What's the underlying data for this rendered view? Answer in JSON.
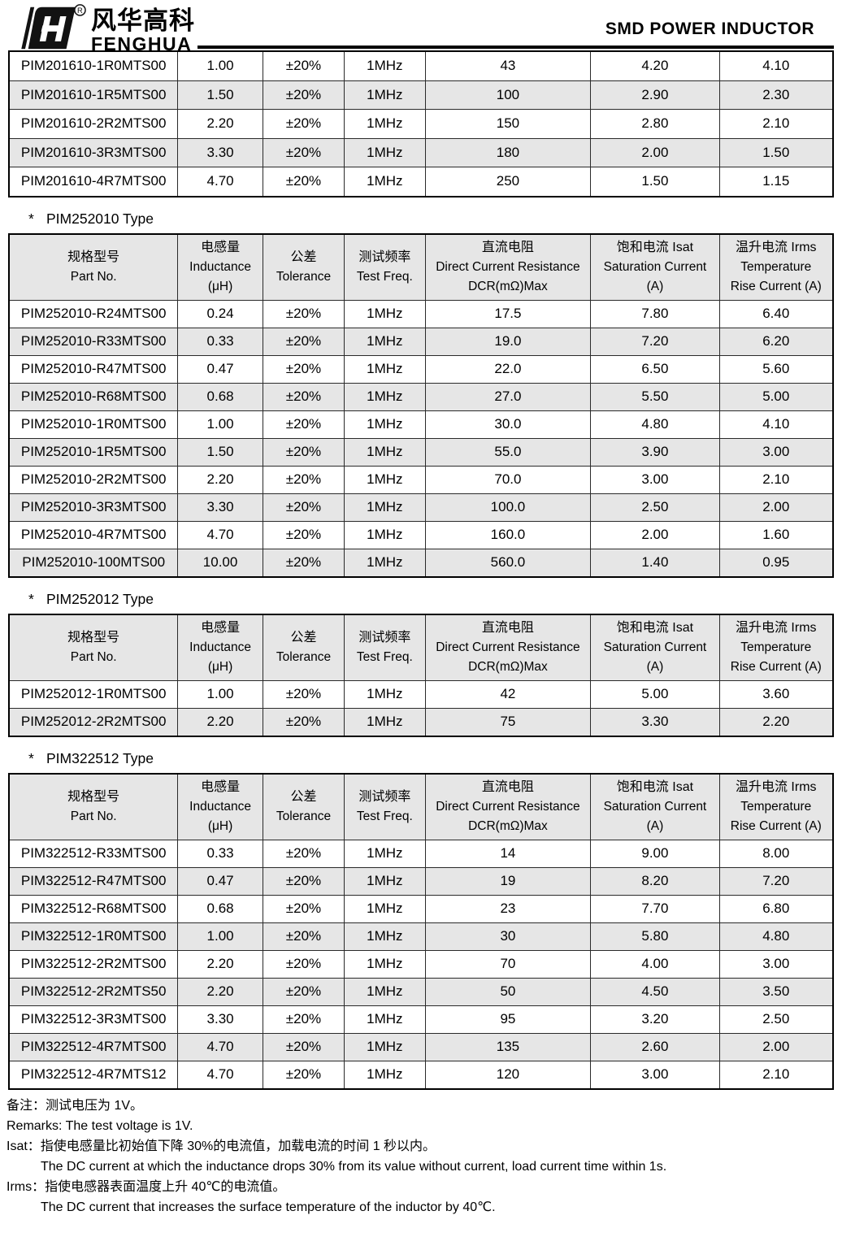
{
  "header": {
    "brand_cn": "风华高科",
    "brand_en": "FENGHUA",
    "registered": "R",
    "title": "SMD POWER INDUCTOR"
  },
  "column_headers": [
    {
      "key": "part_no",
      "lines": [
        "规格型号",
        "Part No."
      ]
    },
    {
      "key": "inductance",
      "lines": [
        "电感量",
        "Inductance",
        "(μH)"
      ]
    },
    {
      "key": "tolerance",
      "lines": [
        "公差",
        "Tolerance"
      ]
    },
    {
      "key": "test_freq",
      "lines": [
        "测试频率",
        "Test Freq."
      ]
    },
    {
      "key": "dcr",
      "lines": [
        "直流电阻",
        "Direct Current Resistance",
        "DCR(mΩ)Max"
      ]
    },
    {
      "key": "isat",
      "lines": [
        "饱和电流  Isat",
        "Saturation Current",
        "(A)"
      ]
    },
    {
      "key": "irms",
      "lines": [
        "温升电流  Irms",
        "Temperature",
        "Rise Current (A)"
      ]
    }
  ],
  "tables": [
    {
      "id": "PIM201610",
      "heading": null,
      "show_header": false,
      "rows": [
        [
          "PIM201610-1R0MTS00",
          "1.00",
          "±20%",
          "1MHz",
          "43",
          "4.20",
          "4.10"
        ],
        [
          "PIM201610-1R5MTS00",
          "1.50",
          "±20%",
          "1MHz",
          "100",
          "2.90",
          "2.30"
        ],
        [
          "PIM201610-2R2MTS00",
          "2.20",
          "±20%",
          "1MHz",
          "150",
          "2.80",
          "2.10"
        ],
        [
          "PIM201610-3R3MTS00",
          "3.30",
          "±20%",
          "1MHz",
          "180",
          "2.00",
          "1.50"
        ],
        [
          "PIM201610-4R7MTS00",
          "4.70",
          "±20%",
          "1MHz",
          "250",
          "1.50",
          "1.15"
        ]
      ]
    },
    {
      "id": "PIM252010",
      "heading": {
        "mark": "*",
        "label": "PIM252010 Type"
      },
      "show_header": true,
      "rows": [
        [
          "PIM252010-R24MTS00",
          "0.24",
          "±20%",
          "1MHz",
          "17.5",
          "7.80",
          "6.40"
        ],
        [
          "PIM252010-R33MTS00",
          "0.33",
          "±20%",
          "1MHz",
          "19.0",
          "7.20",
          "6.20"
        ],
        [
          "PIM252010-R47MTS00",
          "0.47",
          "±20%",
          "1MHz",
          "22.0",
          "6.50",
          "5.60"
        ],
        [
          "PIM252010-R68MTS00",
          "0.68",
          "±20%",
          "1MHz",
          "27.0",
          "5.50",
          "5.00"
        ],
        [
          "PIM252010-1R0MTS00",
          "1.00",
          "±20%",
          "1MHz",
          "30.0",
          "4.80",
          "4.10"
        ],
        [
          "PIM252010-1R5MTS00",
          "1.50",
          "±20%",
          "1MHz",
          "55.0",
          "3.90",
          "3.00"
        ],
        [
          "PIM252010-2R2MTS00",
          "2.20",
          "±20%",
          "1MHz",
          "70.0",
          "3.00",
          "2.10"
        ],
        [
          "PIM252010-3R3MTS00",
          "3.30",
          "±20%",
          "1MHz",
          "100.0",
          "2.50",
          "2.00"
        ],
        [
          "PIM252010-4R7MTS00",
          "4.70",
          "±20%",
          "1MHz",
          "160.0",
          "2.00",
          "1.60"
        ],
        [
          "PIM252010-100MTS00",
          "10.00",
          "±20%",
          "1MHz",
          "560.0",
          "1.40",
          "0.95"
        ]
      ]
    },
    {
      "id": "PIM252012",
      "heading": {
        "mark": "*",
        "label": "PIM252012 Type"
      },
      "show_header": true,
      "rows": [
        [
          "PIM252012-1R0MTS00",
          "1.00",
          "±20%",
          "1MHz",
          "42",
          "5.00",
          "3.60"
        ],
        [
          "PIM252012-2R2MTS00",
          "2.20",
          "±20%",
          "1MHz",
          "75",
          "3.30",
          "2.20"
        ]
      ]
    },
    {
      "id": "PIM322512",
      "heading": {
        "mark": "*",
        "label": "PIM322512 Type"
      },
      "show_header": true,
      "rows": [
        [
          "PIM322512-R33MTS00",
          "0.33",
          "±20%",
          "1MHz",
          "14",
          "9.00",
          "8.00"
        ],
        [
          "PIM322512-R47MTS00",
          "0.47",
          "±20%",
          "1MHz",
          "19",
          "8.20",
          "7.20"
        ],
        [
          "PIM322512-R68MTS00",
          "0.68",
          "±20%",
          "1MHz",
          "23",
          "7.70",
          "6.80"
        ],
        [
          "PIM322512-1R0MTS00",
          "1.00",
          "±20%",
          "1MHz",
          "30",
          "5.80",
          "4.80"
        ],
        [
          "PIM322512-2R2MTS00",
          "2.20",
          "±20%",
          "1MHz",
          "70",
          "4.00",
          "3.00"
        ],
        [
          "PIM322512-2R2MTS50",
          "2.20",
          "±20%",
          "1MHz",
          "50",
          "4.50",
          "3.50"
        ],
        [
          "PIM322512-3R3MTS00",
          "3.30",
          "±20%",
          "1MHz",
          "95",
          "3.20",
          "2.50"
        ],
        [
          "PIM322512-4R7MTS00",
          "4.70",
          "±20%",
          "1MHz",
          "135",
          "2.60",
          "2.00"
        ],
        [
          "PIM322512-4R7MTS12",
          "4.70",
          "±20%",
          "1MHz",
          "120",
          "3.00",
          "2.10"
        ]
      ]
    }
  ],
  "remarks": [
    {
      "text": "备注：测试电压为 1V。",
      "indent": false
    },
    {
      "text": "Remarks: The test voltage is 1V.",
      "indent": false
    },
    {
      "text": "Isat：指使电感量比初始值下降 30%的电流值，加载电流的时间 1 秒以内。",
      "indent": false
    },
    {
      "text": "The DC current at which the inductance drops 30% from its value without current, load current time within 1s.",
      "indent": true
    },
    {
      "text": "Irms：指使电感器表面温度上升 40℃的电流值。",
      "indent": false
    },
    {
      "text": "The DC current that increases the surface temperature of the inductor by 40℃.",
      "indent": true
    }
  ],
  "colors": {
    "row_alt": "#e6e6e6",
    "border": "#2a2a2a",
    "text": "#000000"
  },
  "column_widths_pct": [
    20.5,
    10.3,
    9.9,
    9.8,
    20.1,
    15.6,
    13.8
  ]
}
